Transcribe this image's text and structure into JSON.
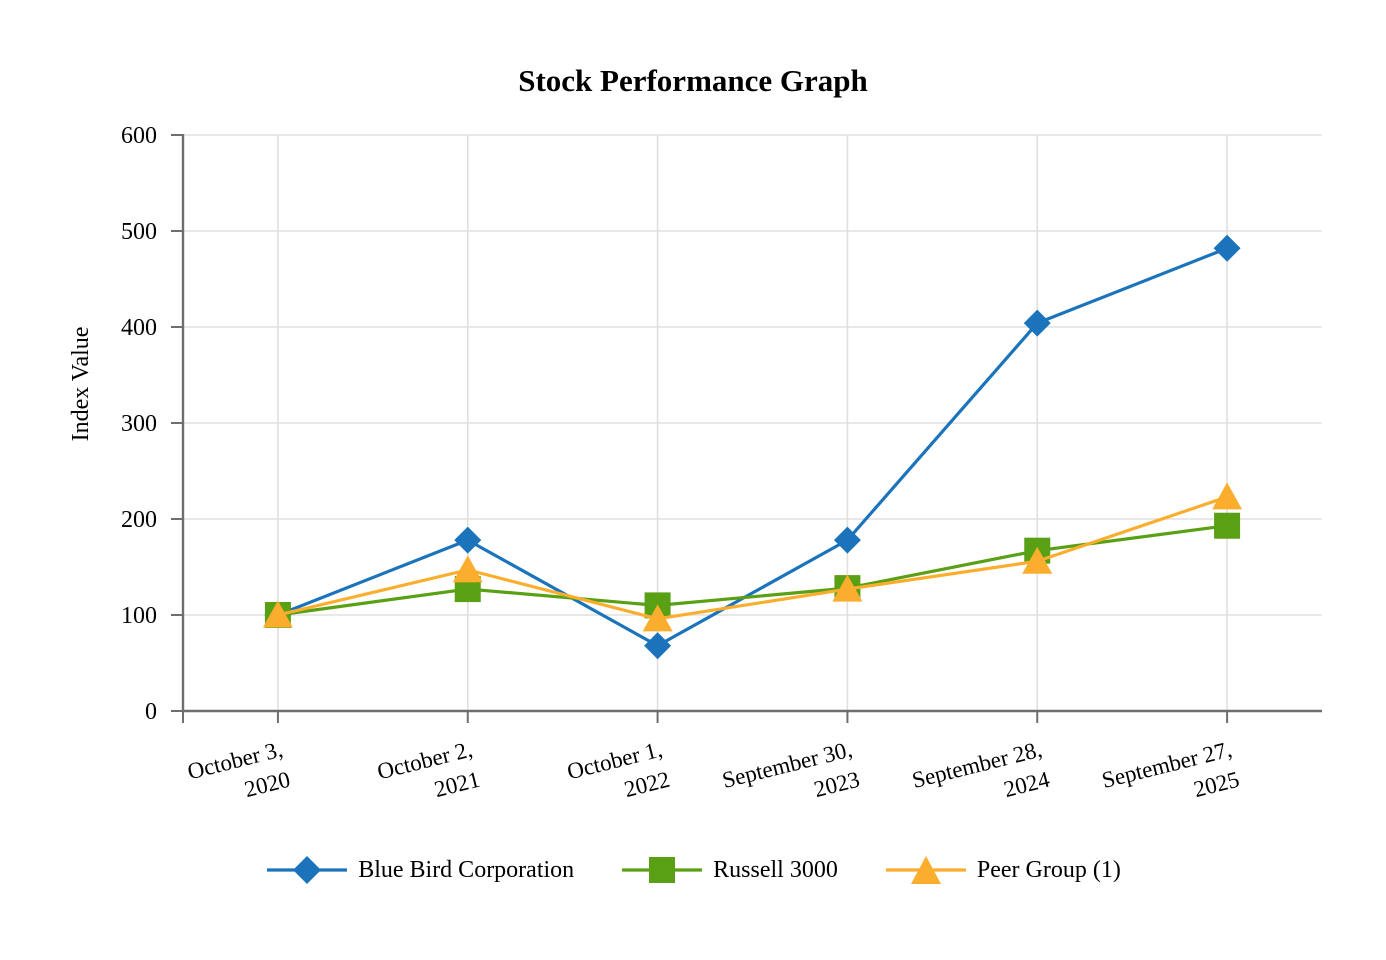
{
  "page": {
    "background": "#FFFFFF"
  },
  "chart_data": {
    "type": "line",
    "title": "Stock Performance Graph",
    "ylabel": "Index Value",
    "xlabel": "",
    "ylim": [
      0,
      600
    ],
    "yticks": [
      0,
      100,
      200,
      300,
      400,
      500,
      600
    ],
    "grid": true,
    "legend_position": "bottom",
    "categories": [
      {
        "line1": "October 3,",
        "line2": "2020"
      },
      {
        "line1": "October 2,",
        "line2": "2021"
      },
      {
        "line1": "October 1,",
        "line2": "2022"
      },
      {
        "line1": "September 30,",
        "line2": "2023"
      },
      {
        "line1": "September 28,",
        "line2": "2024"
      },
      {
        "line1": "September 27,",
        "line2": "2025"
      }
    ],
    "series": [
      {
        "name": "Blue Bird Corporation",
        "marker": "diamond",
        "color": "#1B74BB",
        "values": [
          100,
          178,
          68,
          178,
          404,
          482
        ]
      },
      {
        "name": "Russell 3000",
        "marker": "square",
        "color": "#5AA014",
        "values": [
          100,
          127,
          110,
          128,
          167,
          193
        ]
      },
      {
        "name": "Peer Group (1)",
        "marker": "triangle",
        "color": "#FBAE2D",
        "values": [
          100,
          147,
          96,
          127,
          156,
          223
        ]
      }
    ]
  },
  "colors": {
    "gridline": "#E0E0E0",
    "axis_line": "#6E6E6E",
    "text": "#000000",
    "background": "#FFFFFF"
  }
}
